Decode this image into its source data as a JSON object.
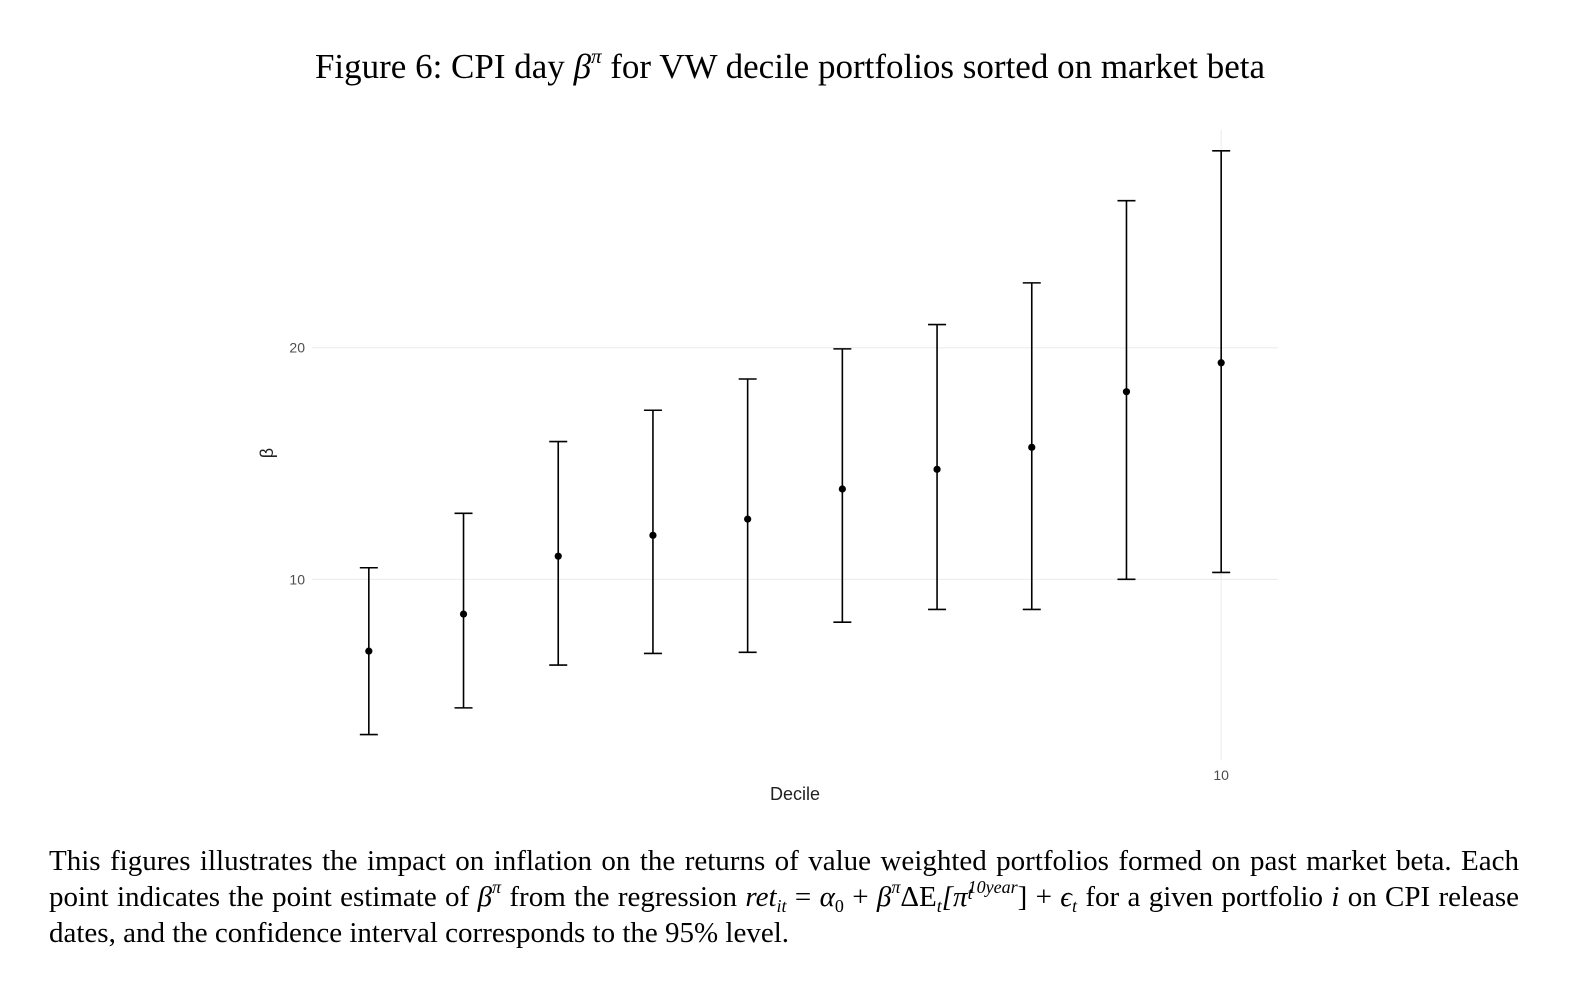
{
  "figure": {
    "title_prefix": "Figure 6:  CPI day",
    "title_beta": "β",
    "title_pi": "π",
    "title_suffix": "for VW decile portfolios sorted on market beta"
  },
  "caption": {
    "part1": "This figures illustrates the impact on inflation on the returns of value weighted portfolios formed on past market beta.  Each point indicates the point estimate of",
    "beta": "β",
    "pi": "π",
    "part2": "from the regression",
    "formula_ret": "ret",
    "formula_it": "it",
    "formula_eq": "=",
    "formula_alpha": "α",
    "formula_zero": "0",
    "formula_plus1": "+",
    "formula_beta": "β",
    "formula_pi": "π",
    "formula_delta": "ΔE",
    "formula_t": "t",
    "formula_bracket_open": "[π",
    "formula_10year": "10year",
    "formula_t2": "t",
    "formula_bracket_close": "]",
    "formula_plus2": "+",
    "formula_eps": "ϵ",
    "formula_t3": "t",
    "part3": "for a given portfolio",
    "portfolio_i": "i",
    "part4": "on CPI release dates, and the confidence interval corresponds to the 95% level."
  },
  "chart_data": {
    "type": "errorbar",
    "x": [
      1,
      2,
      3,
      4,
      5,
      6,
      7,
      8,
      9,
      10
    ],
    "estimate": [
      6.9,
      8.5,
      11.0,
      11.9,
      12.6,
      13.9,
      14.75,
      15.7,
      18.1,
      19.35
    ],
    "ci_lower": [
      3.3,
      4.45,
      6.3,
      6.8,
      6.85,
      8.15,
      8.7,
      8.7,
      10.0,
      10.3
    ],
    "ci_upper": [
      10.5,
      12.85,
      15.95,
      17.3,
      18.65,
      19.95,
      21.0,
      22.8,
      26.35,
      28.5
    ],
    "xlabel": "Decile",
    "ylabel": "β",
    "x_tick_labels": [
      {
        "value": 10,
        "label": "10"
      }
    ],
    "y_tick_labels": [
      {
        "value": 10,
        "label": "10"
      },
      {
        "value": 20,
        "label": "20"
      }
    ],
    "xlim": [
      0.4,
      10.6
    ],
    "ylim": [
      2.2,
      29.4
    ],
    "grid": true,
    "grid_color": "#ebebeb",
    "point_color": "#000000",
    "errorbar_color": "#000000"
  }
}
